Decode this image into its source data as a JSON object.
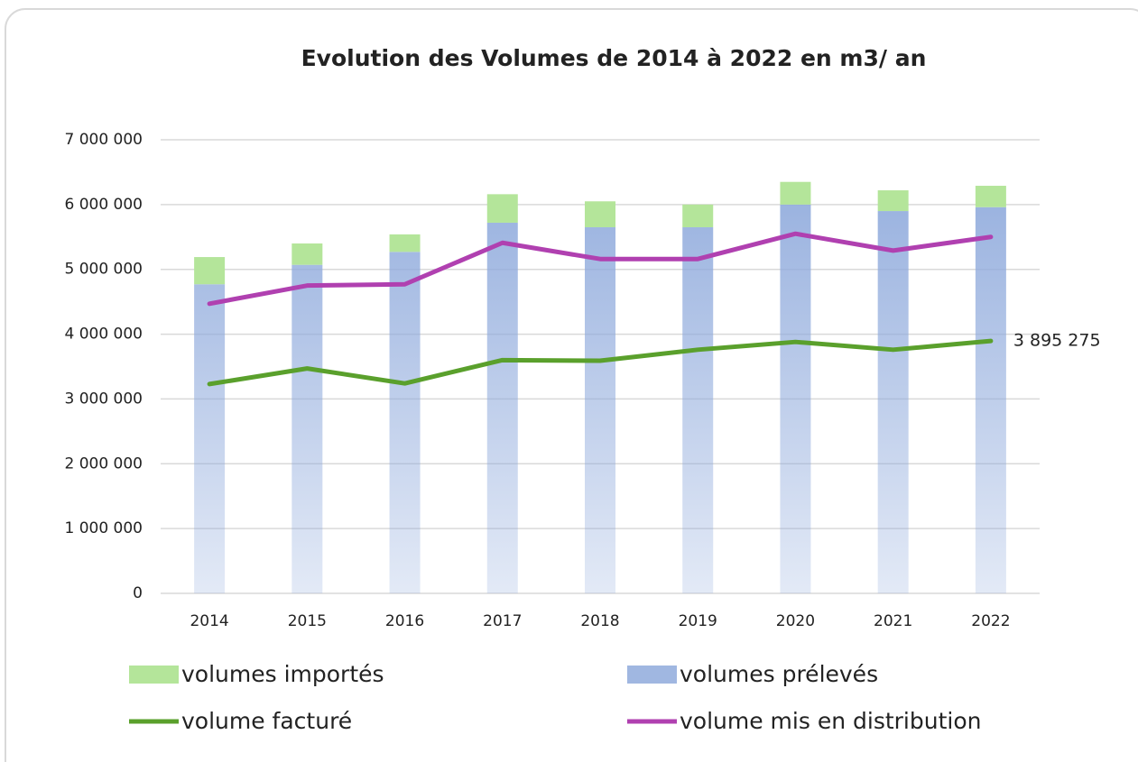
{
  "chart_data": {
    "type": "bar_line",
    "title": "Evolution des Volumes de 2014 à 2022 en m3/ an",
    "categories": [
      "2014",
      "2015",
      "2016",
      "2017",
      "2018",
      "2019",
      "2020",
      "2021",
      "2022"
    ],
    "series": [
      {
        "name": "volumes prélevés",
        "type": "bar",
        "color": "#8faadc",
        "values": [
          4770000,
          5070000,
          5270000,
          5720000,
          5650000,
          5650000,
          6000000,
          5900000,
          5960000
        ]
      },
      {
        "name": "volumes importés",
        "type": "bar",
        "color": "#b4e59a",
        "values": [
          420000,
          330000,
          270000,
          440000,
          400000,
          350000,
          350000,
          320000,
          330000
        ]
      },
      {
        "name": "volume facturé",
        "type": "line",
        "color": "#5aa02c",
        "values": [
          3230000,
          3470000,
          3240000,
          3600000,
          3590000,
          3760000,
          3880000,
          3760000,
          3895275
        ],
        "value_labels": [
          null,
          null,
          null,
          null,
          null,
          null,
          null,
          null,
          "3 895 275"
        ]
      },
      {
        "name": "volume mis en distribution",
        "type": "line",
        "color": "#b040b0",
        "values": [
          4470000,
          4750000,
          4770000,
          5410000,
          5160000,
          5160000,
          5550000,
          5290000,
          5500000
        ]
      }
    ],
    "ylim": [
      0,
      7000000
    ],
    "yticks": [
      0,
      {
        "value": 1000000,
        "label": "1 000 000"
      },
      {
        "value": 2000000,
        "label": "2 000 000"
      },
      {
        "value": 3000000,
        "label": "3 000 000"
      },
      {
        "value": 4000000,
        "label": "4 000 000"
      },
      {
        "value": 5000000,
        "label": "5 000 000"
      },
      {
        "value": 6000000,
        "label": "6 000 000"
      },
      {
        "value": 7000000,
        "label": "7 000 000"
      }
    ],
    "grid": true
  }
}
